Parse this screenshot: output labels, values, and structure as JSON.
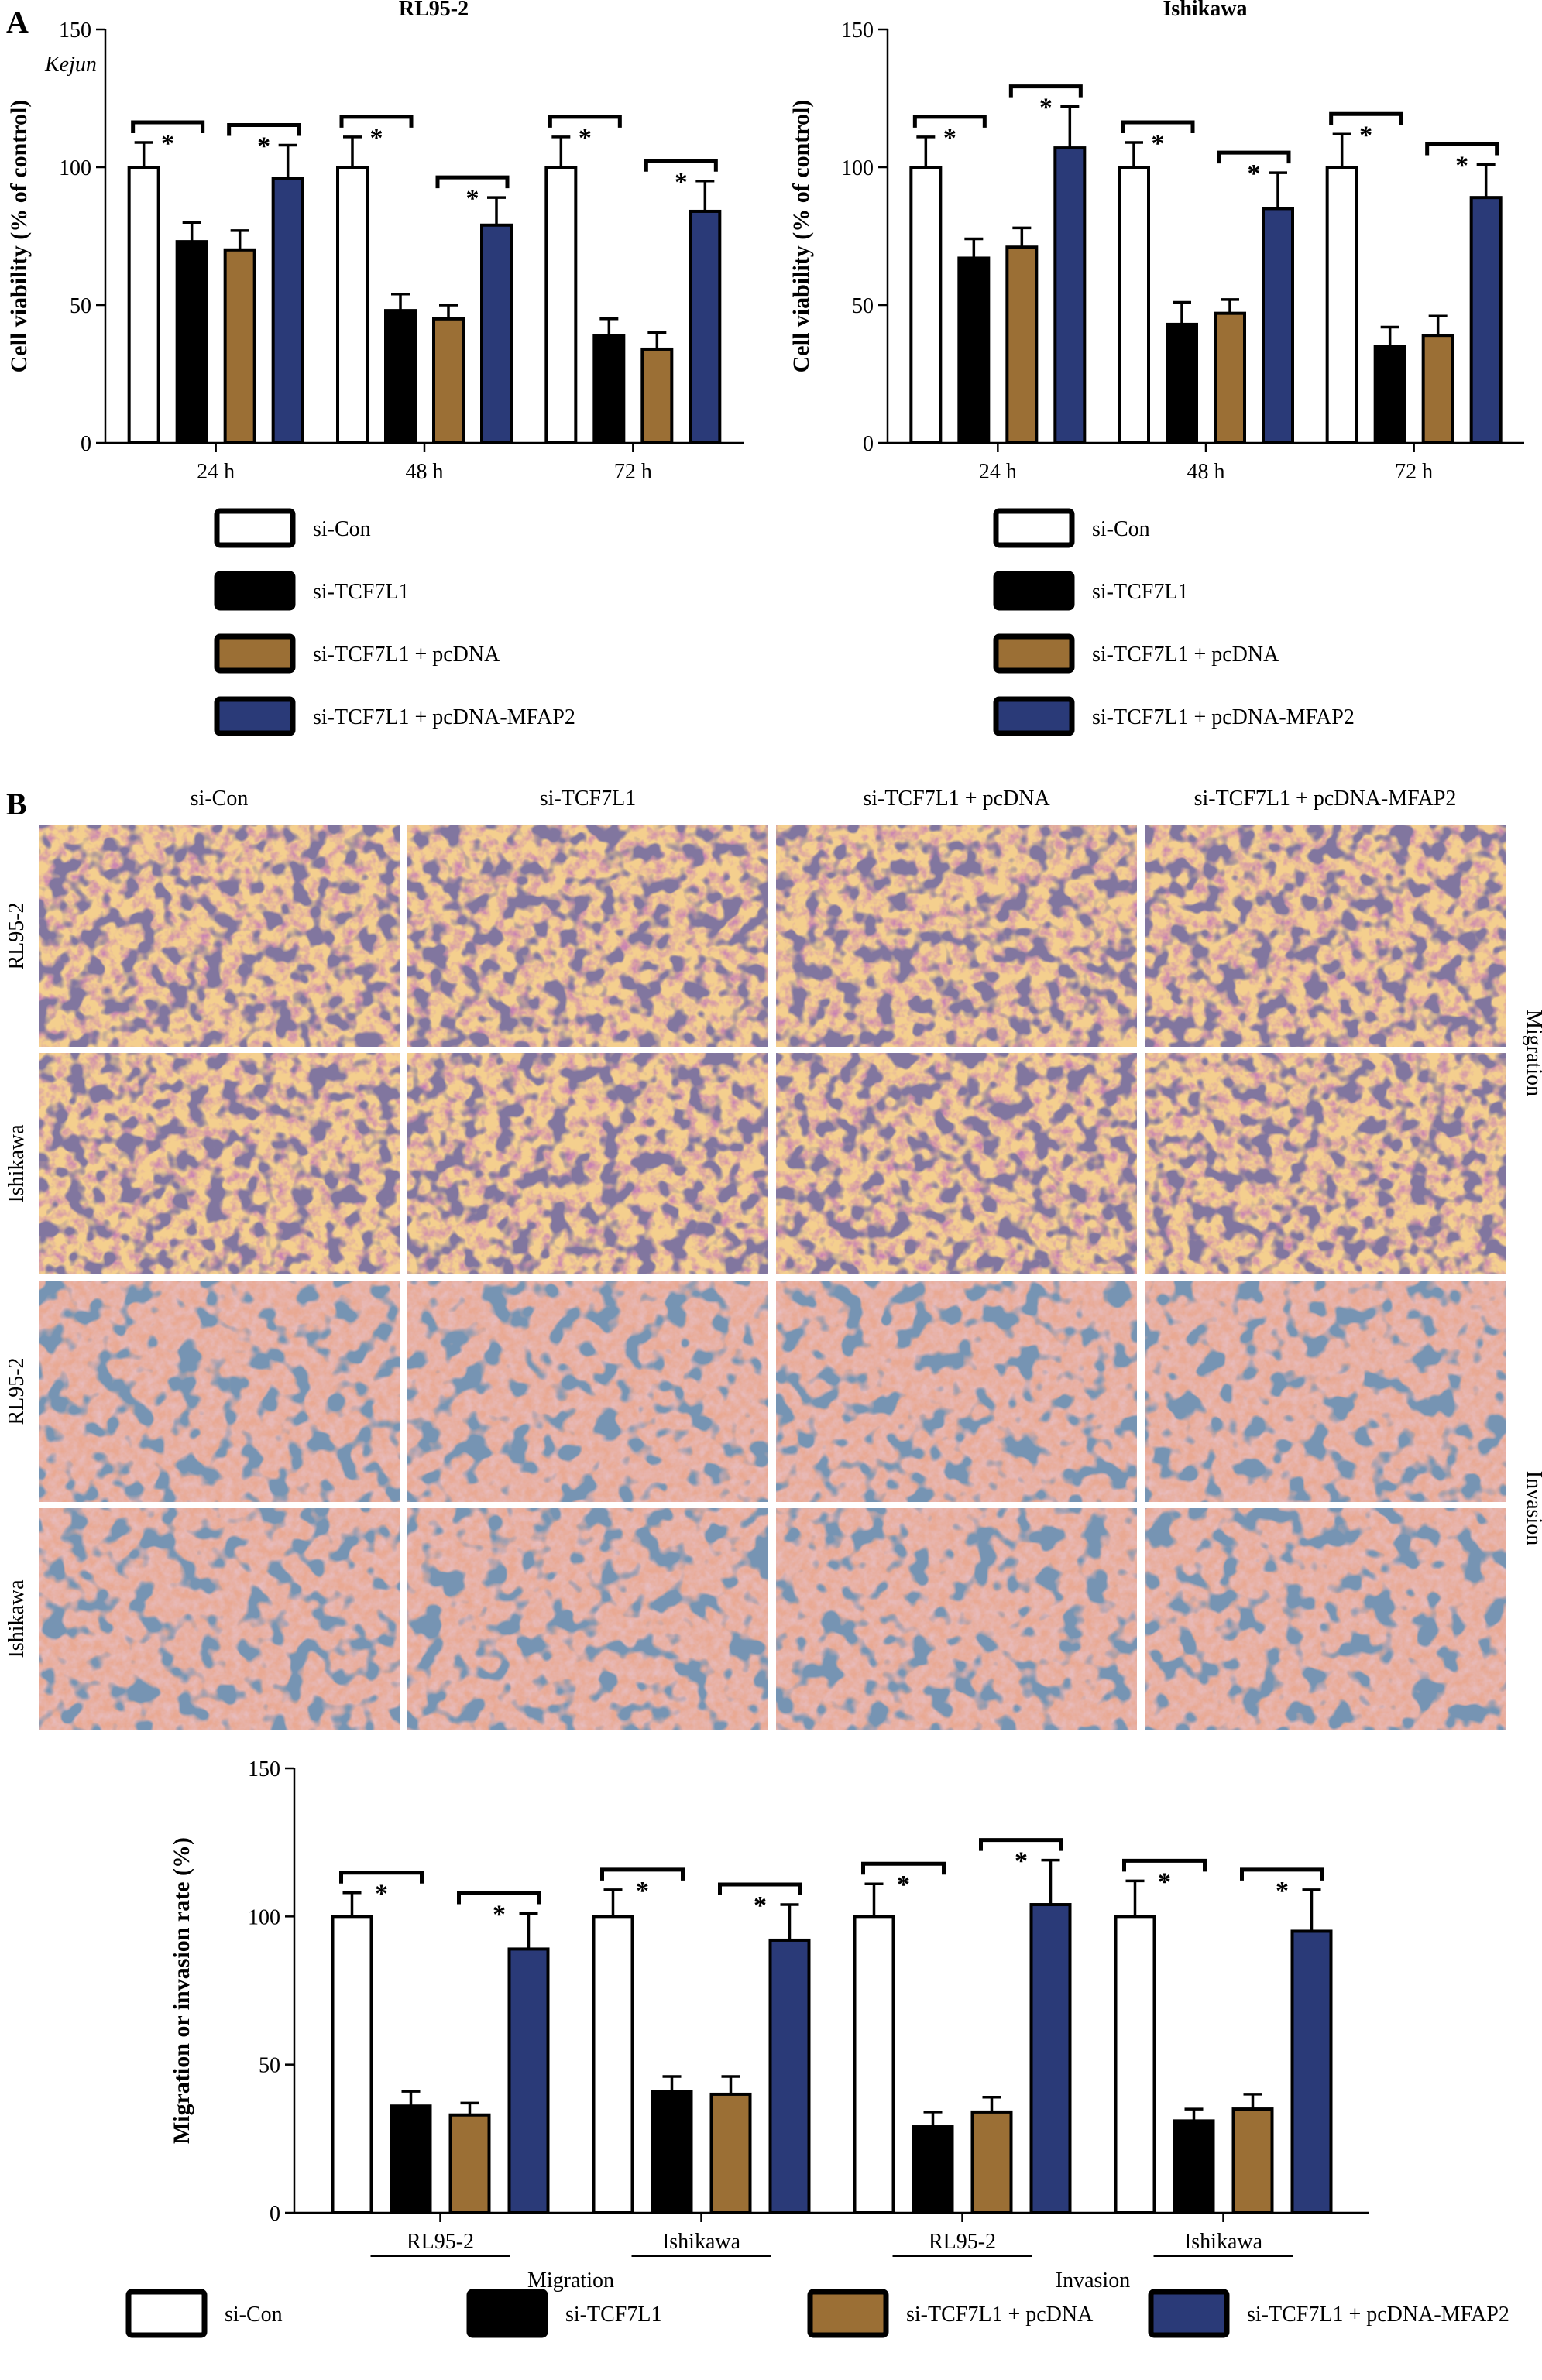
{
  "panel_a_label": "A",
  "panel_b_label": "B",
  "watermark": "Kejun",
  "colors": {
    "si_con": "#ffffff",
    "si_tcf": "#000000",
    "pcdna": "#9b6f35",
    "mfap2": "#2a3a78"
  },
  "chart_data": [
    {
      "type": "bar",
      "title": "RL95-2",
      "ylabel": "Cell viability (% of control)",
      "ylim": [
        0,
        150
      ],
      "yticks": [
        0,
        50,
        100,
        150
      ],
      "categories": [
        "24 h",
        "48 h",
        "72 h"
      ],
      "series": [
        {
          "name": "si-Con",
          "values": [
            100,
            100,
            100
          ],
          "errors": [
            9,
            11,
            11
          ]
        },
        {
          "name": "si-TCF7L1",
          "values": [
            73,
            48,
            39
          ],
          "errors": [
            7,
            6,
            6
          ]
        },
        {
          "name": "si-TCF7L1 + pcDNA",
          "values": [
            70,
            45,
            34
          ],
          "errors": [
            7,
            5,
            6
          ]
        },
        {
          "name": "si-TCF7L1 + pcDNA-MFAP2",
          "values": [
            96,
            79,
            84
          ],
          "errors": [
            12,
            10,
            11
          ]
        }
      ],
      "significance": [
        "*",
        "*",
        "*",
        "*",
        "*",
        "*"
      ]
    },
    {
      "type": "bar",
      "title": "Ishikawa",
      "ylabel": "Cell viability (% of control)",
      "ylim": [
        0,
        150
      ],
      "yticks": [
        0,
        50,
        100,
        150
      ],
      "categories": [
        "24 h",
        "48 h",
        "72 h"
      ],
      "series": [
        {
          "name": "si-Con",
          "values": [
            100,
            100,
            100
          ],
          "errors": [
            11,
            9,
            12
          ]
        },
        {
          "name": "si-TCF7L1",
          "values": [
            67,
            43,
            35
          ],
          "errors": [
            7,
            8,
            7
          ]
        },
        {
          "name": "si-TCF7L1 + pcDNA",
          "values": [
            71,
            47,
            39
          ],
          "errors": [
            7,
            5,
            7
          ]
        },
        {
          "name": "si-TCF7L1 + pcDNA-MFAP2",
          "values": [
            107,
            85,
            89
          ],
          "errors": [
            15,
            13,
            12
          ]
        }
      ],
      "significance": [
        "*",
        "*",
        "*",
        "*",
        "*",
        "*"
      ]
    },
    {
      "type": "bar",
      "title": "",
      "ylabel": "Migration or invasion rate (%)",
      "ylim": [
        0,
        150
      ],
      "yticks": [
        0,
        50,
        100,
        150
      ],
      "categories": [
        "RL95-2",
        "Ishikawa",
        "RL95-2",
        "Ishikawa"
      ],
      "groups": [
        "Migration",
        "Invasion"
      ],
      "series": [
        {
          "name": "si-Con",
          "values": [
            100,
            100,
            100,
            100
          ],
          "errors": [
            8,
            9,
            11,
            12
          ]
        },
        {
          "name": "si-TCF7L1",
          "values": [
            36,
            41,
            29,
            31
          ],
          "errors": [
            5,
            5,
            5,
            4
          ]
        },
        {
          "name": "si-TCF7L1 + pcDNA",
          "values": [
            33,
            40,
            34,
            35
          ],
          "errors": [
            4,
            6,
            5,
            5
          ]
        },
        {
          "name": "si-TCF7L1 + pcDNA-MFAP2",
          "values": [
            89,
            92,
            104,
            95
          ],
          "errors": [
            12,
            12,
            15,
            14
          ]
        }
      ],
      "significance": [
        "*",
        "*",
        "*",
        "*",
        "*",
        "*",
        "*",
        "*"
      ]
    }
  ],
  "micro": {
    "columns": [
      "si-Con",
      "si-TCF7L1",
      "si-TCF7L1 + pcDNA",
      "si-TCF7L1 + pcDNA-MFAP2"
    ],
    "rows": [
      "RL95-2",
      "Ishikawa",
      "RL95-2",
      "Ishikawa"
    ],
    "side_labels": [
      "Migration",
      "Invasion"
    ]
  }
}
